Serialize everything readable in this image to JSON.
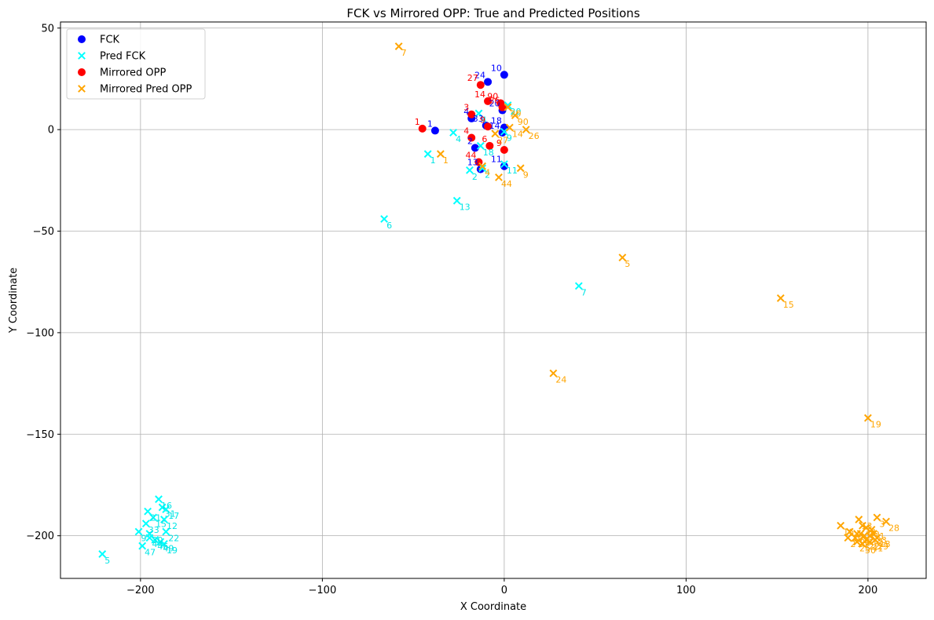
{
  "chart_data": {
    "type": "scatter",
    "title": "FCK vs Mirrored OPP: True and Predicted Positions",
    "xlabel": "X Coordinate",
    "ylabel": "Y Coordinate",
    "xlim": [
      -244,
      232
    ],
    "ylim": [
      -221,
      53
    ],
    "xticks": [
      -200,
      -100,
      0,
      100,
      200
    ],
    "yticks": [
      50,
      0,
      -50,
      -100,
      -150,
      -200
    ],
    "xtick_labels": [
      "−200",
      "−100",
      "0",
      "100",
      "200"
    ],
    "ytick_labels": [
      "50",
      "0",
      "−50",
      "−100",
      "−150",
      "−200"
    ],
    "grid": true,
    "legend_position": "top-left",
    "series": [
      {
        "name": "FCK",
        "marker": "circle",
        "color": "#0000ff",
        "label_color": "#0000ff",
        "points": [
          {
            "x": 0,
            "y": 27,
            "label": "10"
          },
          {
            "x": -9,
            "y": 23.5,
            "label": "24"
          },
          {
            "x": -38,
            "y": -0.5,
            "label": "1"
          },
          {
            "x": -18,
            "y": 5.5,
            "label": "4"
          },
          {
            "x": -10,
            "y": 2,
            "label": "33"
          },
          {
            "x": -1,
            "y": 9.5,
            "label": "20"
          },
          {
            "x": 0,
            "y": 1,
            "label": "18"
          },
          {
            "x": -16,
            "y": -9,
            "label": "2"
          },
          {
            "x": -13,
            "y": -19.5,
            "label": "13"
          },
          {
            "x": 0,
            "y": -18,
            "label": "11"
          },
          {
            "x": -1,
            "y": -1.5,
            "label": "14"
          }
        ]
      },
      {
        "name": "Pred FCK",
        "marker": "x",
        "color": "#00ffff",
        "label_color": "#00e5e5",
        "points": [
          {
            "x": -14,
            "y": 8,
            "label": "4"
          },
          {
            "x": -28,
            "y": -1.5,
            "label": "4"
          },
          {
            "x": -42,
            "y": -12,
            "label": "1"
          },
          {
            "x": -19,
            "y": -20,
            "label": "2"
          },
          {
            "x": -12,
            "y": -19,
            "label": "2"
          },
          {
            "x": -26,
            "y": -35,
            "label": "13"
          },
          {
            "x": -66,
            "y": -44,
            "label": "6"
          },
          {
            "x": 41,
            "y": -77,
            "label": "7"
          },
          {
            "x": 0,
            "y": -17,
            "label": "11"
          },
          {
            "x": -13,
            "y": -8,
            "label": "18"
          },
          {
            "x": 2,
            "y": 12,
            "label": "20"
          },
          {
            "x": 0,
            "y": -1,
            "label": "9"
          },
          {
            "x": -221,
            "y": -209,
            "label": "5"
          },
          {
            "x": -190,
            "y": -182,
            "label": "16"
          },
          {
            "x": -186,
            "y": -187,
            "label": "17"
          },
          {
            "x": -188,
            "y": -186,
            "label": "31"
          },
          {
            "x": -196,
            "y": -188,
            "label": "21"
          },
          {
            "x": -193,
            "y": -191,
            "label": "15"
          },
          {
            "x": -187,
            "y": -192,
            "label": "12"
          },
          {
            "x": -197,
            "y": -194,
            "label": "33"
          },
          {
            "x": -201,
            "y": -198,
            "label": "9"
          },
          {
            "x": -195,
            "y": -199,
            "label": "30"
          },
          {
            "x": -186,
            "y": -198,
            "label": "22"
          },
          {
            "x": -195,
            "y": -201,
            "label": "44"
          },
          {
            "x": -192,
            "y": -202,
            "label": "46"
          },
          {
            "x": -189,
            "y": -203,
            "label": "49"
          },
          {
            "x": -187,
            "y": -204,
            "label": "19"
          },
          {
            "x": -199,
            "y": -205,
            "label": "47"
          }
        ]
      },
      {
        "name": "Mirrored OPP",
        "marker": "circle",
        "color": "#ff0000",
        "label_color": "#ff0000",
        "points": [
          {
            "x": -13,
            "y": 22,
            "label": "27"
          },
          {
            "x": -9,
            "y": 14,
            "label": "14"
          },
          {
            "x": -2,
            "y": 13,
            "label": "90"
          },
          {
            "x": -18,
            "y": 7.5,
            "label": "3"
          },
          {
            "x": -45,
            "y": 0.5,
            "label": "1"
          },
          {
            "x": -9,
            "y": 1.5,
            "label": "9"
          },
          {
            "x": -1,
            "y": 11,
            "label": "26"
          },
          {
            "x": -18,
            "y": -4,
            "label": "4"
          },
          {
            "x": -8,
            "y": -8,
            "label": "6"
          },
          {
            "x": 0,
            "y": -10,
            "label": "9"
          },
          {
            "x": -14,
            "y": -16,
            "label": "44"
          }
        ]
      },
      {
        "name": "Mirrored Pred OPP",
        "marker": "x",
        "color": "#ffa500",
        "label_color": "#ffa500",
        "points": [
          {
            "x": -58,
            "y": 41,
            "label": "7"
          },
          {
            "x": -35,
            "y": -12,
            "label": "1"
          },
          {
            "x": -12,
            "y": -18,
            "label": "4"
          },
          {
            "x": -3,
            "y": -23.5,
            "label": "44"
          },
          {
            "x": 9,
            "y": -19,
            "label": "9"
          },
          {
            "x": 12,
            "y": 0,
            "label": "26"
          },
          {
            "x": 6,
            "y": 7,
            "label": "90"
          },
          {
            "x": 3,
            "y": 1,
            "label": "14"
          },
          {
            "x": -5,
            "y": -2,
            "label": "27"
          },
          {
            "x": 2,
            "y": 11,
            "label": "20"
          },
          {
            "x": 65,
            "y": -63,
            "label": "5"
          },
          {
            "x": 152,
            "y": -83,
            "label": "15"
          },
          {
            "x": 27,
            "y": -120,
            "label": "24"
          },
          {
            "x": 200,
            "y": -142,
            "label": "19"
          },
          {
            "x": 185,
            "y": -195,
            "label": "16"
          },
          {
            "x": 190,
            "y": -198,
            "label": "10"
          },
          {
            "x": 195,
            "y": -192,
            "label": "13"
          },
          {
            "x": 197,
            "y": -195,
            "label": "32"
          },
          {
            "x": 205,
            "y": -191,
            "label": "3"
          },
          {
            "x": 210,
            "y": -193,
            "label": "28"
          },
          {
            "x": 199,
            "y": -196,
            "label": "30"
          },
          {
            "x": 202,
            "y": -197,
            "label": "11"
          },
          {
            "x": 194,
            "y": -199,
            "label": "6"
          },
          {
            "x": 196,
            "y": -199,
            "label": "17"
          },
          {
            "x": 203,
            "y": -199,
            "label": "23"
          },
          {
            "x": 198,
            "y": -200,
            "label": "8"
          },
          {
            "x": 201,
            "y": -200,
            "label": "12"
          },
          {
            "x": 205,
            "y": -201,
            "label": "18"
          },
          {
            "x": 189,
            "y": -201,
            "label": "2"
          },
          {
            "x": 193,
            "y": -201,
            "label": "21"
          },
          {
            "x": 199,
            "y": -202,
            "label": "22"
          },
          {
            "x": 204,
            "y": -202,
            "label": "29"
          },
          {
            "x": 194,
            "y": -203,
            "label": "25"
          },
          {
            "x": 201,
            "y": -203,
            "label": "41"
          },
          {
            "x": 197,
            "y": -204,
            "label": "50"
          }
        ]
      }
    ]
  }
}
